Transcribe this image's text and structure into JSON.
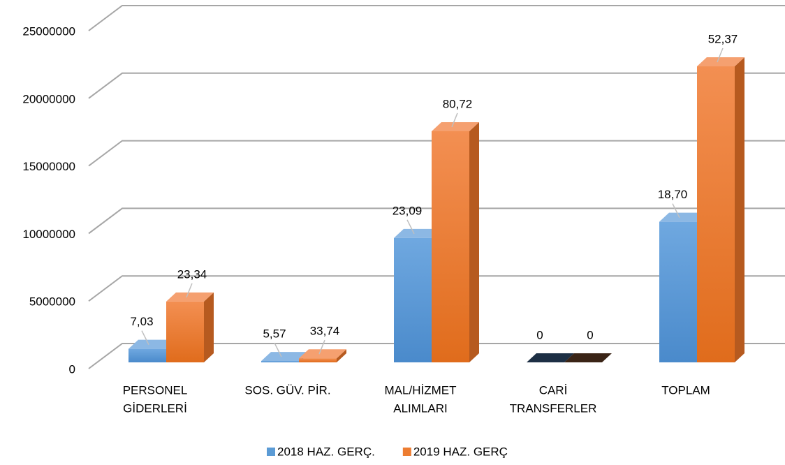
{
  "chart_data": {
    "type": "bar3d",
    "categories": [
      [
        "PERSONEL",
        "GİDERLERİ"
      ],
      [
        "SOS. GÜV. PİR."
      ],
      [
        "MAL/HİZMET",
        "ALIMLARI"
      ],
      [
        "CARİ",
        "TRANSFERLER"
      ],
      [
        "TOPLAM"
      ]
    ],
    "series": [
      {
        "name": "2018 HAZ. GERÇ.",
        "color": "#5b9bd5",
        "values": [
          1000000,
          100000,
          9200000,
          0,
          10400000
        ],
        "labels": [
          "7,03",
          "5,57",
          "23,09",
          "0",
          "18,70"
        ]
      },
      {
        "name": "2019 HAZ. GERÇ",
        "color": "#ed7d31",
        "values": [
          4500000,
          300000,
          17100000,
          0,
          21900000
        ],
        "labels": [
          "23,34",
          "33,74",
          "80,72",
          "0",
          "52,37"
        ]
      }
    ],
    "ylim": [
      0,
      25000000
    ],
    "yticks": [
      0,
      5000000,
      10000000,
      15000000,
      20000000,
      25000000
    ],
    "grid": true,
    "legend": "bottom"
  }
}
